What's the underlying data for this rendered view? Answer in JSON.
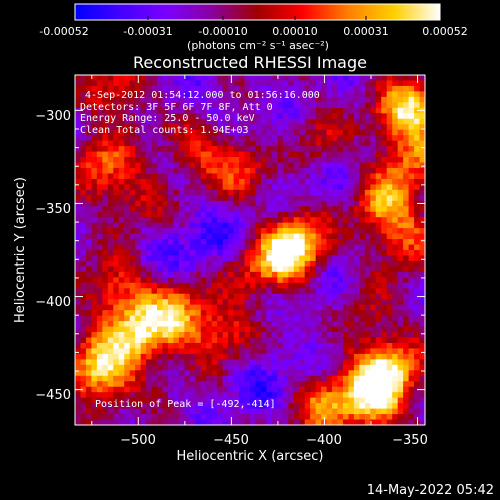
{
  "colorbar": {
    "min": -0.00052,
    "max": 0.00052,
    "tick_labels": [
      "-0.00052",
      "-0.00031",
      "-0.00010",
      "0.00010",
      "0.00031",
      "0.00052"
    ],
    "unit_label": "(photons cm⁻² s⁻¹ asec⁻²)",
    "colors": [
      "#0000ff",
      "#4400ff",
      "#7a00ff",
      "#8a00a0",
      "#a00000",
      "#ff0000",
      "#ff8000",
      "#ffd000",
      "#ffffff"
    ]
  },
  "chart_data": {
    "type": "heatmap",
    "title": "Reconstructed RHESSI Image",
    "xlabel": "Heliocentric X (arcsec)",
    "ylabel": "Heliocentric Y (arcsec)",
    "xlim": [
      -534,
      -346
    ],
    "ylim": [
      -469,
      -281
    ],
    "x_ticks": [
      {
        "value": -500,
        "label": "−500"
      },
      {
        "value": -450,
        "label": "−450"
      },
      {
        "value": -400,
        "label": "−400"
      },
      {
        "value": -350,
        "label": "−350"
      }
    ],
    "y_ticks": [
      {
        "value": -300,
        "label": "−300"
      },
      {
        "value": -350,
        "label": "−350"
      },
      {
        "value": -400,
        "label": "−400"
      },
      {
        "value": -450,
        "label": "−450"
      }
    ],
    "annotations": [
      "4-Sep-2012 01:54:12.000 to 01:56:16.000",
      "Detectors: 3F 5F 6F 7F 8F, Att 0",
      "Energy Range: 25.0 - 50.0 keV",
      "Clean    Total counts: 1.94E+03"
    ],
    "peak_label": "Position of Peak = [-492,-414]",
    "peak_position": [
      -492,
      -414
    ],
    "bright_regions": [
      {
        "x": -520,
        "y": -440,
        "level": 1.0
      },
      {
        "x": -500,
        "y": -420,
        "level": 0.85
      },
      {
        "x": -480,
        "y": -410,
        "level": 0.7
      },
      {
        "x": -455,
        "y": -420,
        "level": 0.55
      },
      {
        "x": -512,
        "y": -395,
        "level": 0.55
      },
      {
        "x": -420,
        "y": -378,
        "level": 0.8
      },
      {
        "x": -411,
        "y": -370,
        "level": 0.55
      },
      {
        "x": -355,
        "y": -300,
        "level": 0.9
      },
      {
        "x": -352,
        "y": -325,
        "level": 0.6
      },
      {
        "x": -370,
        "y": -350,
        "level": 0.75
      },
      {
        "x": -356,
        "y": -370,
        "level": 0.5
      },
      {
        "x": -365,
        "y": -440,
        "level": 0.85
      },
      {
        "x": -375,
        "y": -455,
        "level": 0.9
      },
      {
        "x": -400,
        "y": -460,
        "level": 0.6
      },
      {
        "x": -445,
        "y": -330,
        "level": 0.55
      },
      {
        "x": -470,
        "y": -320,
        "level": 0.45
      },
      {
        "x": -520,
        "y": -330,
        "level": 0.55
      },
      {
        "x": -510,
        "y": -290,
        "level": 0.5
      },
      {
        "x": -500,
        "y": -350,
        "level": 0.4
      },
      {
        "x": -405,
        "y": -318,
        "level": 0.45
      },
      {
        "x": -440,
        "y": -385,
        "level": 0.4
      },
      {
        "x": -380,
        "y": -410,
        "level": 0.45
      }
    ],
    "dark_regions": [
      {
        "x": -455,
        "y": -370,
        "level": 0.6
      },
      {
        "x": -420,
        "y": -320,
        "level": 0.5
      },
      {
        "x": -395,
        "y": -400,
        "level": 0.6
      },
      {
        "x": -435,
        "y": -445,
        "level": 0.55
      },
      {
        "x": -488,
        "y": -372,
        "level": 0.4
      },
      {
        "x": -470,
        "y": -300,
        "level": 0.35
      },
      {
        "x": -390,
        "y": -345,
        "level": 0.45
      }
    ]
  },
  "footer_date": "14-May-2022 05:42"
}
